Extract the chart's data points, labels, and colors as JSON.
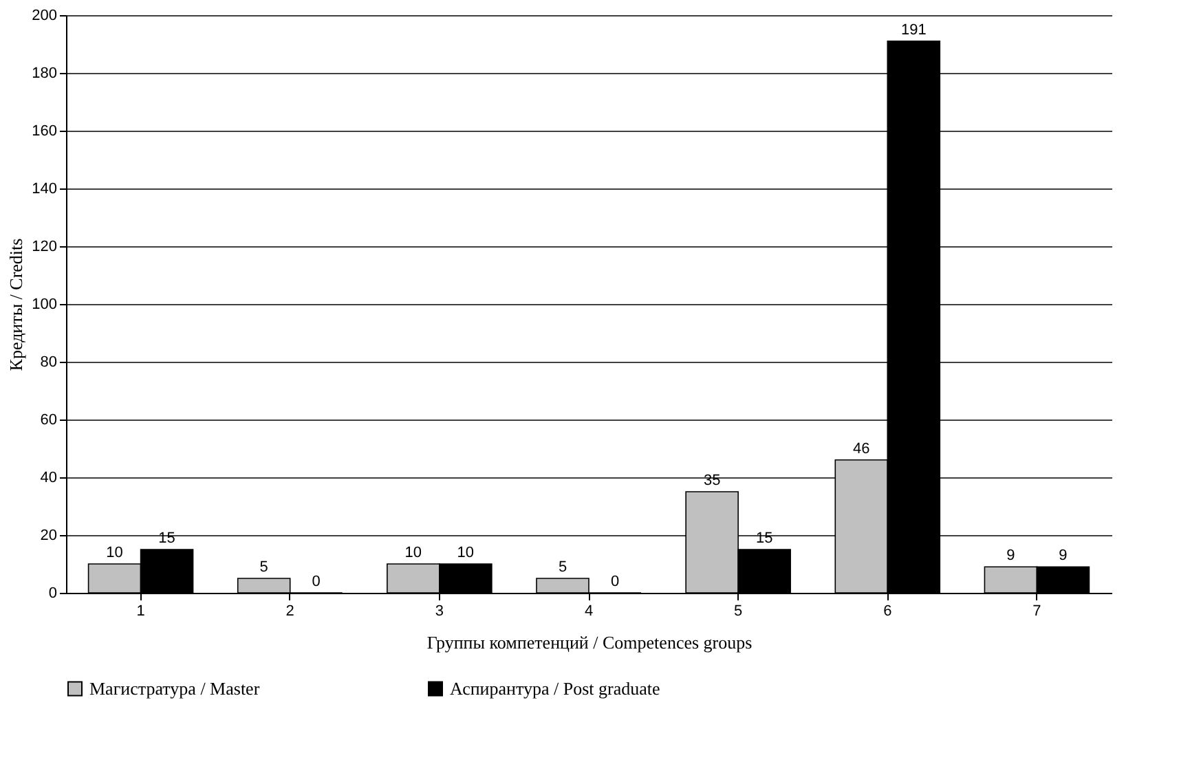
{
  "chart_data": {
    "type": "bar",
    "xlabel": "Группы компетенций / Competences groups",
    "ylabel": "Кредиты / Credits",
    "categories": [
      "1",
      "2",
      "3",
      "4",
      "5",
      "6",
      "7"
    ],
    "series": [
      {
        "name": "Магистратура / Master",
        "color": "#c0c0c0",
        "values": [
          10,
          5,
          10,
          5,
          35,
          46,
          9
        ]
      },
      {
        "name": "Аспирантура / Post graduate",
        "color": "#000000",
        "values": [
          15,
          0,
          10,
          0,
          15,
          191,
          9
        ]
      }
    ],
    "ylim": [
      0,
      200
    ],
    "yticks": [
      0,
      20,
      40,
      60,
      80,
      100,
      120,
      140,
      160,
      180,
      200
    ],
    "grid": "y",
    "legend": "bottom",
    "data_labels": true
  }
}
